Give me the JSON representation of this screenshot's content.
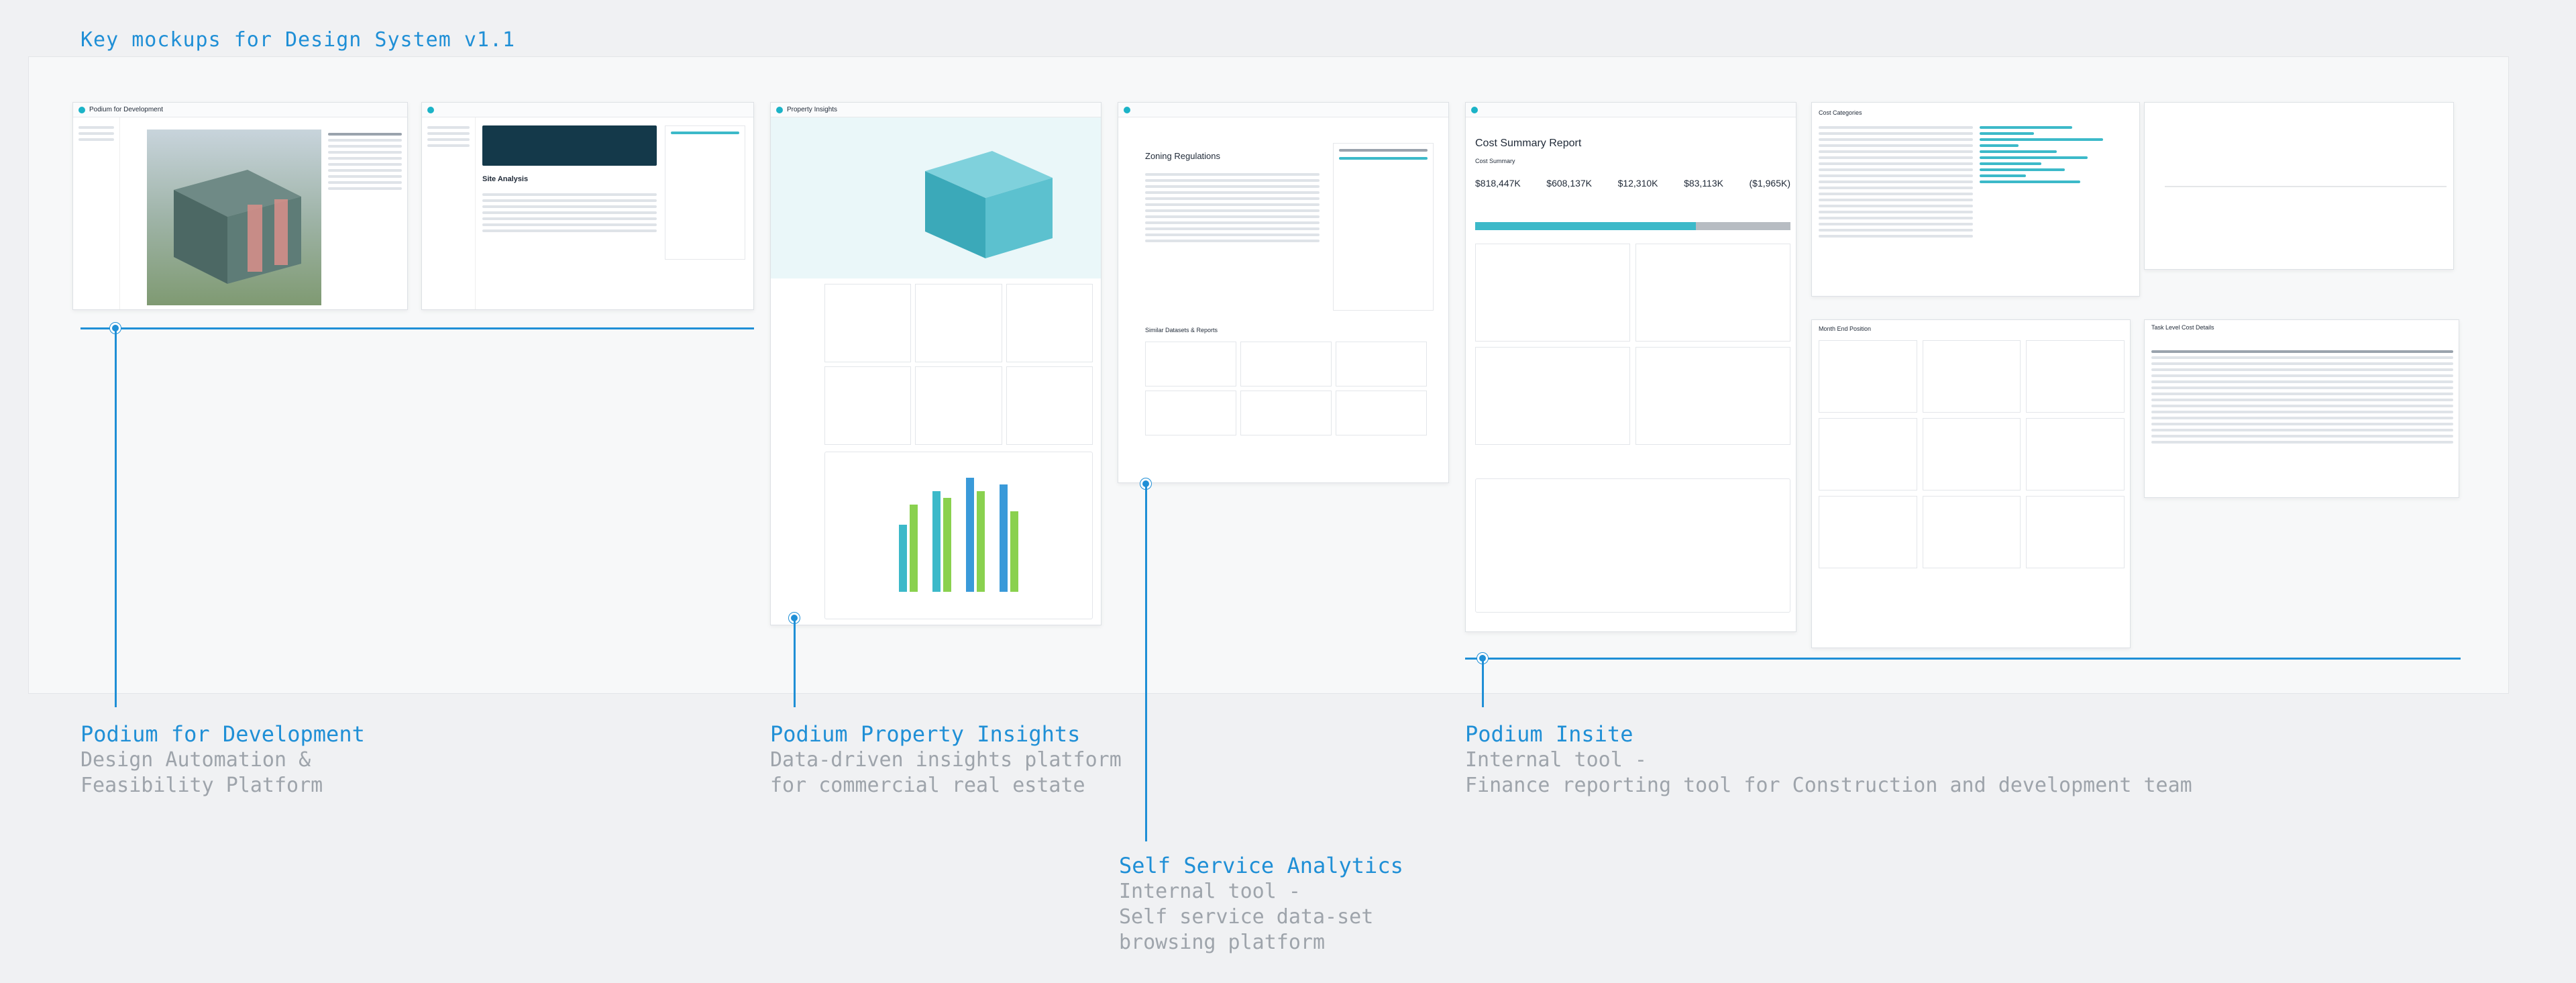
{
  "header": {
    "title": "Key mockups for Design System v1.1"
  },
  "products": [
    {
      "name": "Podium for Development",
      "description": "Design Automation &\nFeasibility Platform"
    },
    {
      "name": "Podium Property Insights",
      "description": "Data-driven insights platform\nfor commercial real estate"
    },
    {
      "name": "Self Service Analytics",
      "description": "Internal tool -\nSelf service data-set\nbrowsing platform"
    },
    {
      "name": "Podium Insite",
      "description": "Internal tool -\nFinance reporting tool for Construction and development team"
    }
  ],
  "mockups": {
    "development": {
      "app_title": "Podium for Development",
      "panel_title": "Site Analysis"
    },
    "insights": {
      "app_title": "Property Insights"
    },
    "ssa": {
      "page_title": "Zoning Regulations",
      "section_title": "Similar Datasets & Reports"
    },
    "insite": {
      "report_title": "Cost Summary Report",
      "section_title": "Cost Summary",
      "metrics": [
        "$818,447K",
        "$608,137K",
        "$12,310K",
        "$83,113K",
        "($1,965K)"
      ]
    },
    "cost_categories": {
      "title": "Cost Categories"
    },
    "month_position": {
      "title": "Month End Position"
    },
    "task_level": {
      "title": "Task Level Cost Details"
    }
  },
  "colors": {
    "accent": "#1f8fd6",
    "teal": "#3cb9c9",
    "muted": "#9ea4ab"
  }
}
